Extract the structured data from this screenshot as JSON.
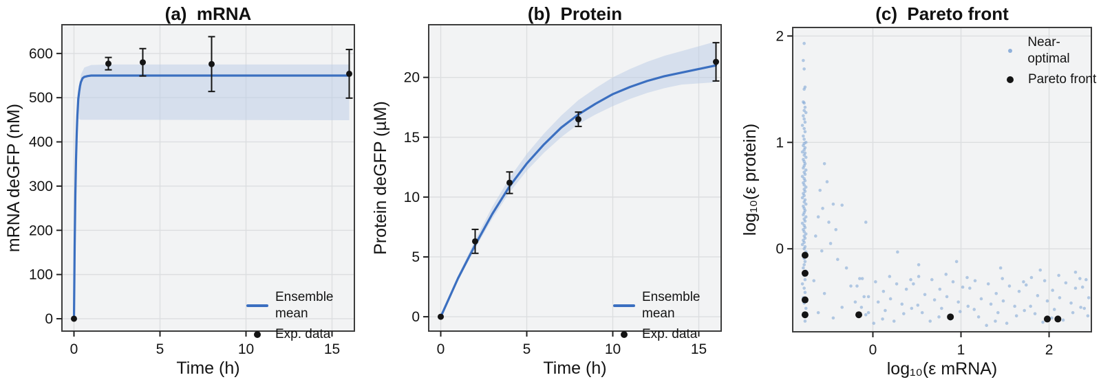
{
  "colors": {
    "plot_bg": "#f2f3f4",
    "grid": "#dcdee0",
    "frame": "#3c3c3c",
    "line_blue": "#3b6fc0",
    "band_blue": "#b9cce6",
    "near_optimal_blue": "#7aa3d4",
    "black": "#141414"
  },
  "chart_data": [
    {
      "id": "a",
      "type": "line",
      "title": "(a)  mRNA",
      "xlabel": "Time (h)",
      "ylabel": "mRNA deGFP (nM)",
      "xlim": [
        -0.7,
        16.3
      ],
      "ylim": [
        -28,
        665
      ],
      "xticks": [
        0,
        5,
        10,
        15
      ],
      "yticks": [
        0,
        100,
        200,
        300,
        400,
        500,
        600
      ],
      "legend": {
        "line": "Ensemble mean",
        "points": "Exp. data"
      },
      "line": [
        [
          0,
          0
        ],
        [
          0.04,
          165
        ],
        [
          0.08,
          280
        ],
        [
          0.12,
          361
        ],
        [
          0.16,
          419
        ],
        [
          0.2,
          461
        ],
        [
          0.25,
          497
        ],
        [
          0.3,
          513
        ],
        [
          0.35,
          526
        ],
        [
          0.4,
          535
        ],
        [
          0.5,
          544
        ],
        [
          0.6,
          547
        ],
        [
          0.8,
          549
        ],
        [
          1,
          550
        ],
        [
          16,
          550
        ]
      ],
      "band_upper": [
        [
          0.28,
          500
        ],
        [
          0.4,
          552
        ],
        [
          0.6,
          568
        ],
        [
          1,
          574
        ],
        [
          2,
          575
        ],
        [
          16,
          575
        ]
      ],
      "band_lower": [
        [
          0.28,
          452
        ],
        [
          0.4,
          450
        ],
        [
          0.6,
          450
        ],
        [
          1,
          450
        ],
        [
          2,
          450
        ],
        [
          16,
          449
        ]
      ],
      "exp_points": {
        "t": [
          0,
          2,
          4,
          8,
          16
        ],
        "y": [
          0,
          577,
          580,
          576,
          554
        ],
        "err": [
          0,
          14,
          31,
          62,
          55
        ]
      }
    },
    {
      "id": "b",
      "type": "line",
      "title": "(b)  Protein",
      "xlabel": "Time (h)",
      "ylabel": "Protein deGFP (µM)",
      "xlim": [
        -0.7,
        16.3
      ],
      "ylim": [
        -1.2,
        24.4
      ],
      "xticks": [
        0,
        5,
        10,
        15
      ],
      "yticks": [
        0,
        5,
        10,
        15,
        20
      ],
      "legend": {
        "line": "Ensemble mean",
        "points": "Exp. data"
      },
      "line": [
        [
          0,
          0
        ],
        [
          1,
          3.2
        ],
        [
          2,
          6.0
        ],
        [
          3,
          8.6
        ],
        [
          4,
          10.9
        ],
        [
          5,
          12.8
        ],
        [
          6,
          14.4
        ],
        [
          7,
          15.8
        ],
        [
          8,
          16.9
        ],
        [
          9,
          17.8
        ],
        [
          10,
          18.6
        ],
        [
          11,
          19.2
        ],
        [
          12,
          19.7
        ],
        [
          13,
          20.1
        ],
        [
          14,
          20.4
        ],
        [
          15,
          20.7
        ],
        [
          16,
          21.0
        ]
      ],
      "band_upper": [
        [
          0,
          0
        ],
        [
          1,
          3.4
        ],
        [
          2,
          6.4
        ],
        [
          3,
          9.2
        ],
        [
          4,
          11.6
        ],
        [
          5,
          13.6
        ],
        [
          6,
          15.3
        ],
        [
          7,
          16.8
        ],
        [
          8,
          18.1
        ],
        [
          9,
          19.1
        ],
        [
          10,
          20.0
        ],
        [
          11,
          20.7
        ],
        [
          12,
          21.3
        ],
        [
          13,
          21.8
        ],
        [
          14,
          22.2
        ],
        [
          15,
          22.6
        ],
        [
          16,
          23.0
        ]
      ],
      "band_lower": [
        [
          0,
          0
        ],
        [
          1,
          3.0
        ],
        [
          2,
          5.7
        ],
        [
          3,
          8.2
        ],
        [
          4,
          10.4
        ],
        [
          5,
          12.2
        ],
        [
          6,
          13.7
        ],
        [
          7,
          15.0
        ],
        [
          8,
          16.1
        ],
        [
          9,
          16.9
        ],
        [
          10,
          17.6
        ],
        [
          11,
          18.2
        ],
        [
          12,
          18.7
        ],
        [
          13,
          19.1
        ],
        [
          14,
          19.4
        ],
        [
          15,
          19.5
        ],
        [
          16,
          19.6
        ]
      ],
      "exp_points": {
        "t": [
          0,
          2,
          4,
          8,
          16
        ],
        "y": [
          0,
          6.3,
          11.2,
          16.5,
          21.3
        ],
        "err": [
          0,
          1.0,
          0.9,
          0.6,
          1.6
        ]
      }
    },
    {
      "id": "c",
      "type": "scatter",
      "title": "(c)  Pareto front",
      "xlabel": "log₁₀(ε mRNA)",
      "ylabel": "log₁₀(ε protein)",
      "xlim": [
        -0.91,
        2.48
      ],
      "ylim": [
        -0.78,
        2.08
      ],
      "xticks": [
        0,
        1,
        2
      ],
      "yticks": [
        0,
        1,
        2
      ],
      "legend": {
        "near": "Near-optimal",
        "pareto": "Pareto front"
      },
      "near_optimal": [
        [
          -0.78,
          1.93
        ],
        [
          -0.79,
          1.77
        ],
        [
          -0.78,
          1.69
        ],
        [
          -0.77,
          1.52
        ],
        [
          -0.78,
          1.5
        ],
        [
          -0.79,
          1.38
        ],
        [
          -0.78,
          1.37
        ],
        [
          -0.77,
          1.33
        ],
        [
          -0.78,
          1.3
        ],
        [
          -0.76,
          1.28
        ],
        [
          -0.79,
          1.25
        ],
        [
          -0.78,
          1.22
        ],
        [
          -0.77,
          1.19
        ],
        [
          -0.8,
          1.16
        ],
        [
          -0.78,
          1.13
        ],
        [
          -0.77,
          1.1
        ],
        [
          -0.79,
          1.06
        ],
        [
          -0.78,
          1.03
        ],
        [
          -0.76,
          1.0
        ],
        [
          -0.78,
          0.99
        ],
        [
          -0.79,
          0.97
        ],
        [
          -0.77,
          0.95
        ],
        [
          -0.78,
          0.93
        ],
        [
          -0.8,
          0.91
        ],
        [
          -0.77,
          0.9
        ],
        [
          -0.78,
          0.88
        ],
        [
          -0.76,
          0.86
        ],
        [
          -0.79,
          0.84
        ],
        [
          -0.78,
          0.82
        ],
        [
          -0.77,
          0.8
        ],
        [
          -0.78,
          0.78
        ],
        [
          -0.79,
          0.76
        ],
        [
          -0.76,
          0.74
        ],
        [
          -0.78,
          0.72
        ],
        [
          -0.77,
          0.7
        ],
        [
          -0.8,
          0.68
        ],
        [
          -0.78,
          0.66
        ],
        [
          -0.77,
          0.64
        ],
        [
          -0.79,
          0.62
        ],
        [
          -0.78,
          0.6
        ],
        [
          -0.76,
          0.58
        ],
        [
          -0.78,
          0.56
        ],
        [
          -0.77,
          0.54
        ],
        [
          -0.79,
          0.52
        ],
        [
          -0.78,
          0.5
        ],
        [
          -0.8,
          0.48
        ],
        [
          -0.77,
          0.46
        ],
        [
          -0.78,
          0.44
        ],
        [
          -0.76,
          0.42
        ],
        [
          -0.79,
          0.4
        ],
        [
          -0.78,
          0.38
        ],
        [
          -0.77,
          0.36
        ],
        [
          -0.78,
          0.34
        ],
        [
          -0.79,
          0.32
        ],
        [
          -0.76,
          0.3
        ],
        [
          -0.78,
          0.28
        ],
        [
          -0.77,
          0.26
        ],
        [
          -0.8,
          0.24
        ],
        [
          -0.78,
          0.22
        ],
        [
          -0.77,
          0.2
        ],
        [
          -0.79,
          0.18
        ],
        [
          -0.78,
          0.16
        ],
        [
          -0.76,
          0.14
        ],
        [
          -0.78,
          0.12
        ],
        [
          -0.77,
          0.1
        ],
        [
          -0.79,
          0.08
        ],
        [
          -0.78,
          0.06
        ],
        [
          -0.8,
          0.04
        ],
        [
          -0.77,
          0.02
        ],
        [
          -0.78,
          0.0
        ],
        [
          -0.76,
          -0.03
        ],
        [
          -0.79,
          -0.06
        ],
        [
          -0.78,
          -0.09
        ],
        [
          -0.77,
          -0.12
        ],
        [
          -0.78,
          -0.15
        ],
        [
          -0.79,
          -0.18
        ],
        [
          -0.76,
          -0.21
        ],
        [
          -0.78,
          -0.25
        ],
        [
          -0.77,
          -0.29
        ],
        [
          -0.8,
          -0.33
        ],
        [
          -0.78,
          -0.37
        ],
        [
          -0.77,
          -0.41
        ],
        [
          -0.79,
          -0.46
        ],
        [
          -0.78,
          -0.51
        ],
        [
          -0.76,
          -0.56
        ],
        [
          -0.78,
          -0.62
        ],
        [
          -0.77,
          -0.68
        ],
        [
          -0.55,
          0.8
        ],
        [
          -0.52,
          0.63
        ],
        [
          -0.6,
          0.55
        ],
        [
          -0.45,
          0.42
        ],
        [
          -0.57,
          0.38
        ],
        [
          -0.35,
          0.41
        ],
        [
          -0.62,
          0.3
        ],
        [
          -0.5,
          0.25
        ],
        [
          -0.42,
          0.18
        ],
        [
          -0.65,
          0.12
        ],
        [
          -0.48,
          0.05
        ],
        [
          -0.58,
          -0.02
        ],
        [
          -0.4,
          -0.1
        ],
        [
          -0.3,
          -0.18
        ],
        [
          -0.67,
          -0.3
        ],
        [
          -0.55,
          -0.42
        ],
        [
          -0.35,
          -0.55
        ],
        [
          -0.62,
          -0.6
        ],
        [
          -0.45,
          -0.65
        ],
        [
          -0.25,
          -0.35
        ],
        [
          -0.2,
          -0.5
        ],
        [
          -0.15,
          -0.28
        ],
        [
          -0.1,
          -0.45
        ],
        [
          -0.05,
          -0.6
        ],
        [
          0.28,
          -0.03
        ],
        [
          0.95,
          -0.12
        ],
        [
          1.45,
          -0.18
        ],
        [
          -0.08,
          0.25
        ],
        [
          0.52,
          -0.15
        ],
        [
          2.3,
          -0.22
        ],
        [
          1.9,
          -0.2
        ],
        [
          -0.18,
          -0.35
        ],
        [
          -0.13,
          -0.55
        ],
        [
          -0.12,
          -0.28
        ],
        [
          -0.08,
          -0.62
        ],
        [
          -0.05,
          -0.45
        ],
        [
          0.01,
          -0.7
        ],
        [
          0.03,
          -0.31
        ],
        [
          0.06,
          -0.5
        ],
        [
          0.11,
          -0.66
        ],
        [
          0.12,
          -0.4
        ],
        [
          0.14,
          -0.58
        ],
        [
          0.19,
          -0.26
        ],
        [
          0.2,
          -0.47
        ],
        [
          0.24,
          -0.68
        ],
        [
          0.27,
          -0.33
        ],
        [
          0.33,
          -0.52
        ],
        [
          0.35,
          -0.61
        ],
        [
          0.38,
          -0.38
        ],
        [
          0.43,
          -0.29
        ],
        [
          0.44,
          -0.56
        ],
        [
          0.46,
          -0.33
        ],
        [
          0.51,
          -0.53
        ],
        [
          0.52,
          -0.26
        ],
        [
          0.56,
          -0.6
        ],
        [
          0.59,
          -0.43
        ],
        [
          0.65,
          -0.68
        ],
        [
          0.67,
          -0.29
        ],
        [
          0.7,
          -0.48
        ],
        [
          0.75,
          -0.64
        ],
        [
          0.76,
          -0.38
        ],
        [
          0.78,
          -0.56
        ],
        [
          0.83,
          -0.24
        ],
        [
          0.84,
          -0.45
        ],
        [
          0.88,
          -0.66
        ],
        [
          0.91,
          -0.31
        ],
        [
          0.97,
          -0.5
        ],
        [
          0.99,
          -0.59
        ],
        [
          1.02,
          -0.36
        ],
        [
          1.07,
          -0.27
        ],
        [
          1.08,
          -0.54
        ],
        [
          1.1,
          -0.37
        ],
        [
          1.15,
          -0.57
        ],
        [
          1.16,
          -0.3
        ],
        [
          1.2,
          -0.64
        ],
        [
          1.23,
          -0.47
        ],
        [
          1.29,
          -0.72
        ],
        [
          1.31,
          -0.33
        ],
        [
          1.34,
          -0.52
        ],
        [
          1.39,
          -0.68
        ],
        [
          1.4,
          -0.42
        ],
        [
          1.42,
          -0.6
        ],
        [
          1.47,
          -0.28
        ],
        [
          1.48,
          -0.49
        ],
        [
          1.52,
          -0.7
        ],
        [
          1.55,
          -0.35
        ],
        [
          1.61,
          -0.54
        ],
        [
          1.63,
          -0.63
        ],
        [
          1.66,
          -0.4
        ],
        [
          1.71,
          -0.31
        ],
        [
          1.72,
          -0.58
        ],
        [
          1.74,
          -0.34
        ],
        [
          1.79,
          -0.54
        ],
        [
          1.8,
          -0.27
        ],
        [
          1.84,
          -0.61
        ],
        [
          1.87,
          -0.44
        ],
        [
          1.93,
          -0.69
        ],
        [
          1.95,
          -0.3
        ],
        [
          1.98,
          -0.49
        ],
        [
          2.03,
          -0.65
        ],
        [
          2.04,
          -0.39
        ],
        [
          2.06,
          -0.57
        ],
        [
          2.11,
          -0.25
        ],
        [
          2.12,
          -0.46
        ],
        [
          2.16,
          -0.67
        ],
        [
          2.19,
          -0.32
        ],
        [
          2.25,
          -0.51
        ],
        [
          2.27,
          -0.6
        ],
        [
          2.3,
          -0.37
        ],
        [
          2.35,
          -0.28
        ],
        [
          2.36,
          -0.55
        ],
        [
          2.38,
          -0.36
        ],
        [
          2.4,
          -0.56
        ],
        [
          2.42,
          -0.29
        ],
        [
          2.44,
          -0.63
        ],
        [
          2.45,
          -0.46
        ]
      ],
      "pareto_front": [
        [
          -0.77,
          -0.06
        ],
        [
          -0.77,
          -0.23
        ],
        [
          -0.77,
          -0.48
        ],
        [
          -0.77,
          -0.62
        ],
        [
          -0.16,
          -0.62
        ],
        [
          0.88,
          -0.64
        ],
        [
          1.98,
          -0.66
        ],
        [
          2.1,
          -0.66
        ]
      ]
    }
  ]
}
